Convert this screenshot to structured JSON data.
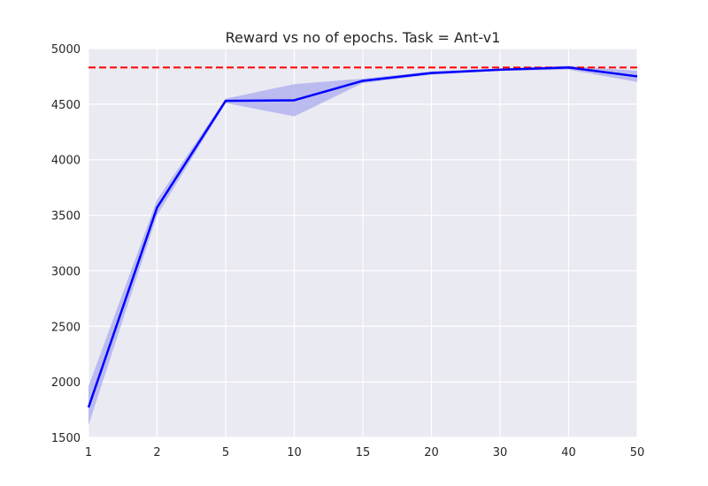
{
  "chart_data": {
    "type": "line",
    "title": "Reward vs no of epochs. Task = Ant-v1",
    "xlabel": "",
    "ylabel": "",
    "categories": [
      "1",
      "2",
      "5",
      "10",
      "15",
      "20",
      "30",
      "40",
      "50"
    ],
    "series": [
      {
        "values": [
          1770,
          3570,
          4530,
          4535,
          4710,
          4780,
          4810,
          4830,
          4750
        ],
        "lower": [
          1610,
          3500,
          4510,
          4390,
          4690,
          4765,
          4800,
          4810,
          4700
        ],
        "upper": [
          1960,
          3640,
          4550,
          4680,
          4730,
          4795,
          4820,
          4845,
          4800
        ]
      }
    ],
    "reference_line": {
      "value": 4830,
      "style": "dashed"
    },
    "ylim": [
      1500,
      5000
    ],
    "yticks": [
      1500,
      2000,
      2500,
      3000,
      3500,
      4000,
      4500,
      5000
    ],
    "grid": true,
    "colors": {
      "background": "#eaeaf2",
      "grid": "#ffffff",
      "line": "#0000ff",
      "band": "#b3b3f0",
      "reference": "#ff0000"
    }
  }
}
